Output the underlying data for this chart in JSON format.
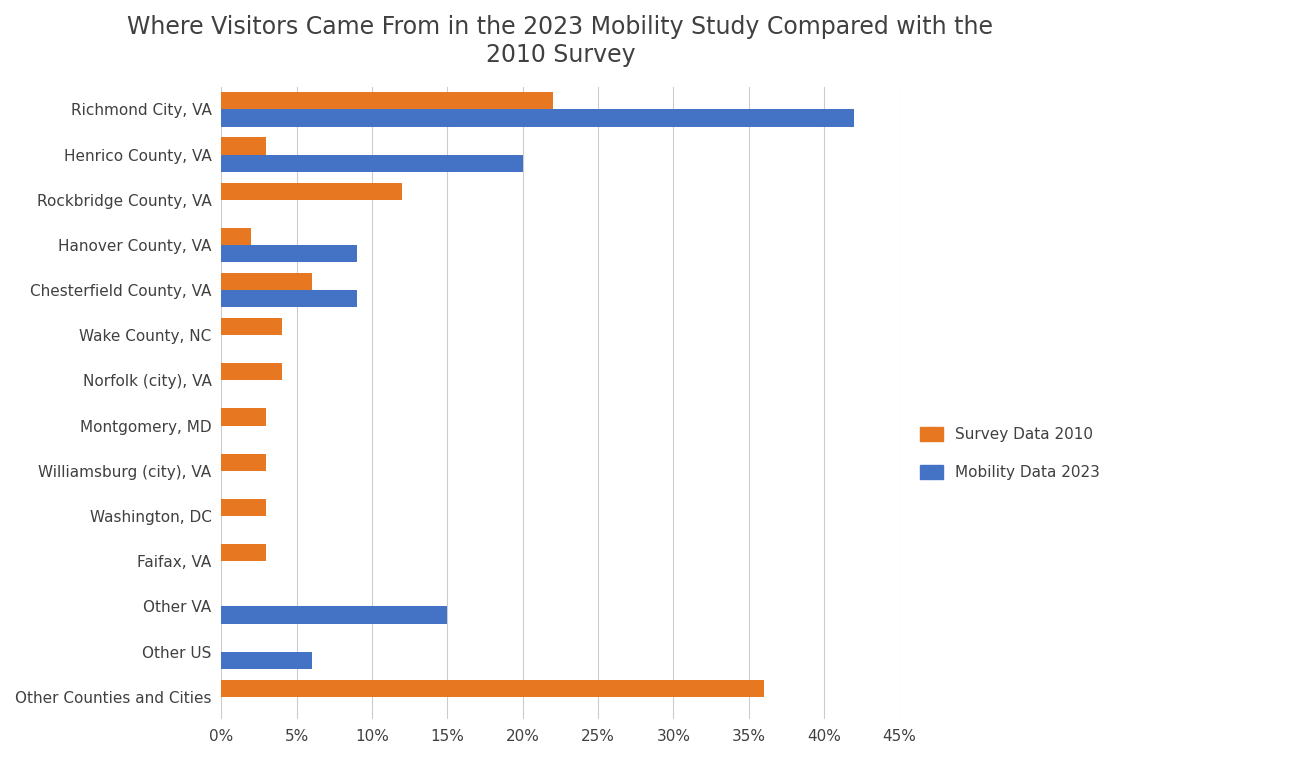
{
  "categories": [
    "Richmond City, VA",
    "Henrico County, VA",
    "Rockbridge County, VA",
    "Hanover County, VA",
    "Chesterfield County, VA",
    "Wake County, NC",
    "Norfolk (city), VA",
    "Montgomery, MD",
    "Williamsburg (city), VA",
    "Washington, DC",
    "Faifax, VA",
    "Other VA",
    "Other US",
    "Other Counties and Cities"
  ],
  "survey_2010": [
    22,
    3,
    12,
    2,
    6,
    4,
    4,
    3,
    3,
    3,
    3,
    0,
    0,
    36
  ],
  "mobility_2023": [
    42,
    20,
    0,
    9,
    9,
    0,
    0,
    0,
    0,
    0,
    0,
    15,
    6,
    0
  ],
  "color_2010": "#E87722",
  "color_2023": "#4472C4",
  "title": "Where Visitors Came From in the 2023 Mobility Study Compared with the\n2010 Survey",
  "xlim": [
    0,
    45
  ],
  "xtick_labels": [
    "0%",
    "5%",
    "10%",
    "15%",
    "20%",
    "25%",
    "30%",
    "35%",
    "40%",
    "45%"
  ],
  "xtick_values": [
    0,
    5,
    10,
    15,
    20,
    25,
    30,
    35,
    40,
    45
  ],
  "legend_labels": [
    "Survey Data 2010",
    "Mobility Data 2023"
  ],
  "title_fontsize": 17,
  "label_fontsize": 11,
  "tick_fontsize": 11,
  "bar_height": 0.38,
  "background_color": "#ffffff",
  "grid_color": "#cccccc"
}
